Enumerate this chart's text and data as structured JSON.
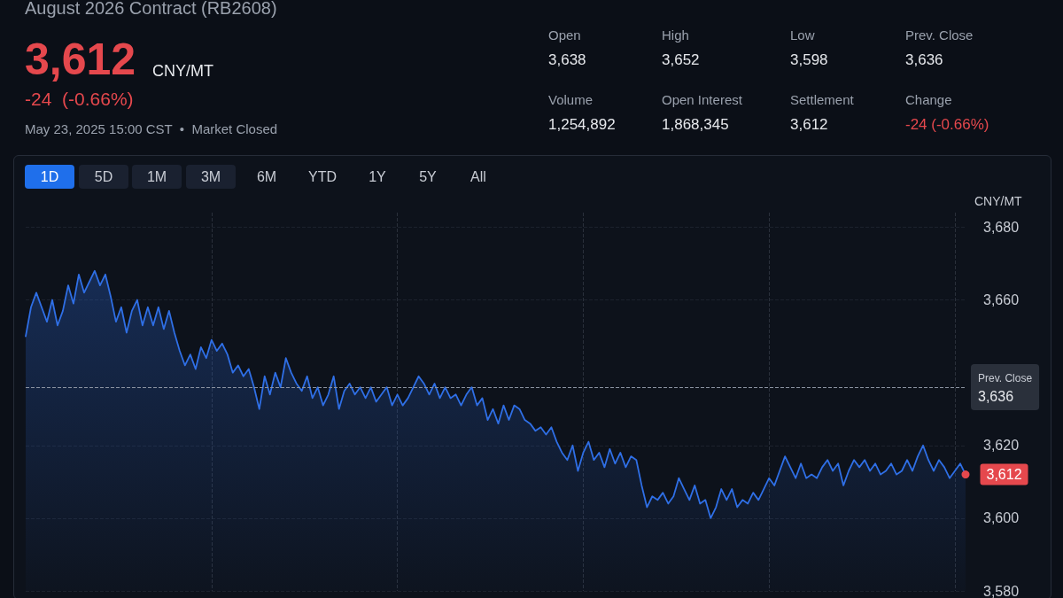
{
  "chart_data": {
    "type": "area",
    "title": "August 2026 Contract (RB2608)",
    "ylabel": "CNY/MT",
    "categories": [
      null,
      null,
      null,
      null,
      null,
      null,
      null,
      null,
      null,
      null,
      null,
      null,
      null,
      null,
      null,
      null,
      null,
      null,
      null,
      null,
      null,
      null,
      null,
      null,
      null,
      null,
      null,
      null,
      null,
      null,
      null,
      null,
      null,
      null,
      null,
      null,
      null,
      null,
      null,
      null,
      null,
      null,
      null,
      null,
      null,
      null,
      null,
      null,
      null,
      null,
      null,
      null,
      null,
      null,
      null,
      null,
      null,
      null,
      null,
      null,
      null,
      null,
      null,
      null,
      null,
      null,
      null,
      null,
      null,
      null,
      null,
      null,
      null,
      null,
      null,
      null,
      null,
      null,
      null,
      null,
      null,
      null,
      null,
      null,
      null,
      null,
      null,
      null,
      null,
      null,
      null,
      null,
      null,
      null,
      null,
      null,
      null,
      null,
      null,
      null,
      null,
      null,
      null,
      null,
      null,
      null,
      null,
      null,
      null,
      null,
      null,
      null,
      null,
      null,
      null,
      null,
      null,
      null,
      null,
      null,
      null,
      null,
      null,
      null,
      null,
      null,
      null,
      null,
      null,
      null,
      null,
      null,
      null,
      null,
      null,
      null,
      null,
      null,
      null,
      null,
      null,
      null,
      null,
      null,
      null,
      null,
      null,
      null,
      null,
      null,
      null,
      null,
      null,
      null,
      null,
      null,
      null,
      null,
      null,
      null,
      null,
      null,
      null,
      null,
      null,
      null,
      null,
      null,
      null,
      null,
      null,
      null,
      null,
      null,
      null,
      null,
      null,
      null
    ],
    "series": [
      {
        "color": "#2f6fe6",
        "values": [
          3650,
          3658,
          3662,
          3658,
          3654,
          3660,
          3653,
          3657,
          3664,
          3659,
          3667,
          3662,
          3665,
          3668,
          3664,
          3667,
          3661,
          3654,
          3658,
          3651,
          3657,
          3660,
          3653,
          3658,
          3653,
          3658,
          3652,
          3657,
          3651,
          3646,
          3642,
          3645,
          3641,
          3647,
          3644,
          3649,
          3646,
          3648,
          3645,
          3640,
          3642,
          3639,
          3641,
          3636,
          3630,
          3639,
          3634,
          3640,
          3636,
          3644,
          3640,
          3637,
          3635,
          3639,
          3633,
          3636,
          3631,
          3634,
          3639,
          3630,
          3635,
          3637,
          3634,
          3636,
          3633,
          3636,
          3632,
          3634,
          3636,
          3631,
          3634,
          3631,
          3633,
          3636,
          3639,
          3637,
          3634,
          3637,
          3633,
          3636,
          3633,
          3634,
          3631,
          3634,
          3636,
          3631,
          3633,
          3627,
          3630,
          3626,
          3631,
          3627,
          3631,
          3630,
          3627,
          3626,
          3624,
          3625,
          3623,
          3625,
          3621,
          3618,
          3616,
          3620,
          3613,
          3618,
          3621,
          3616,
          3618,
          3614,
          3619,
          3615,
          3618,
          3614,
          3617,
          3616,
          3609,
          3603,
          3606,
          3605,
          3607,
          3604,
          3606,
          3611,
          3608,
          3605,
          3609,
          3604,
          3605,
          3600,
          3603,
          3608,
          3605,
          3608,
          3603,
          3605,
          3604,
          3607,
          3605,
          3608,
          3611,
          3609,
          3613,
          3617,
          3614,
          3611,
          3615,
          3611,
          3612,
          3611,
          3614,
          3616,
          3613,
          3615,
          3609,
          3613,
          3616,
          3614,
          3616,
          3613,
          3615,
          3612,
          3613,
          3615,
          3612,
          3613,
          3616,
          3613,
          3617,
          3620,
          3616,
          3613,
          3616,
          3614,
          3611,
          3613,
          3615,
          3612
        ]
      }
    ],
    "ylim": [
      3580,
      3684
    ],
    "yticks": [
      {
        "value": 3580,
        "label": "3,580"
      },
      {
        "value": 3600,
        "label": "3,600"
      },
      {
        "value": 3620,
        "label": "3,620"
      },
      {
        "value": 3660,
        "label": "3,660"
      },
      {
        "value": 3680,
        "label": "3,680"
      }
    ],
    "ref_lines": [
      {
        "axis": "y",
        "value": 3636,
        "label": "Prev. Close",
        "line_style": "dashed",
        "color": "#8b93a1"
      }
    ],
    "grid": true,
    "marker": "none",
    "line_style": "solid",
    "annotations": [
      "3,612",
      "CNY/MT",
      "-24  (-0.66%)",
      "May 23, 2025 15:00 CST  •  Market Closed",
      "Open",
      "3,638",
      "High",
      "3,652",
      "Low",
      "3,598",
      "Prev. Close",
      "3,636",
      "Volume",
      "1,254,892",
      "Open Interest",
      "1,868,345",
      "Settlement",
      "3,612",
      "Change",
      "-24 (-0.66%)",
      "1D",
      "5D",
      "1M",
      "3M",
      "6M",
      "YTD",
      "1Y",
      "5Y",
      "All",
      "3,612"
    ]
  }
}
